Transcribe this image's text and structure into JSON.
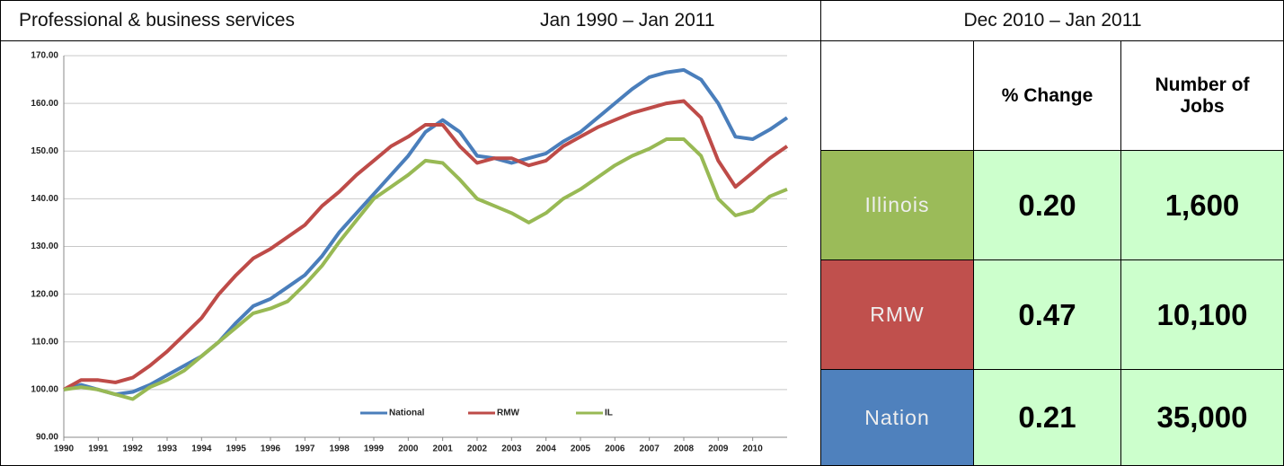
{
  "header": {
    "title": "Professional & business services",
    "chart_range": "Jan 1990 – Jan 2011",
    "table_range": "Dec 2010 – Jan 2011"
  },
  "chart_data": {
    "type": "line",
    "x": [
      1990,
      1990.5,
      1991,
      1991.5,
      1992,
      1992.5,
      1993,
      1993.5,
      1994,
      1994.5,
      1995,
      1995.5,
      1996,
      1996.5,
      1997,
      1997.5,
      1998,
      1998.5,
      1999,
      1999.5,
      2000,
      2000.5,
      2001,
      2001.5,
      2002,
      2002.5,
      2003,
      2003.5,
      2004,
      2004.5,
      2005,
      2005.5,
      2006,
      2006.5,
      2007,
      2007.5,
      2008,
      2008.5,
      2009,
      2009.5,
      2010,
      2010.5,
      2011
    ],
    "series": [
      {
        "name": "National",
        "color": "#4a7ebb",
        "values": [
          100,
          101,
          100,
          99,
          99.5,
          101,
          103,
          105,
          107,
          110,
          114,
          117.5,
          119,
          121.5,
          124,
          128,
          133,
          137,
          141,
          145,
          149,
          154,
          156.5,
          154,
          149,
          148.5,
          147.5,
          148.5,
          149.5,
          152,
          154,
          157,
          160,
          163,
          165.5,
          166.5,
          167,
          165,
          160,
          153,
          152.5,
          154.5,
          157
        ]
      },
      {
        "name": "RMW",
        "color": "#be4b48",
        "values": [
          100,
          102,
          102,
          101.5,
          102.5,
          105,
          108,
          111.5,
          115,
          120,
          124,
          127.5,
          129.5,
          132,
          134.5,
          138.5,
          141.5,
          145,
          148,
          151,
          153,
          155.5,
          155.5,
          151,
          147.5,
          148.5,
          148.5,
          147,
          148,
          151,
          153,
          155,
          156.5,
          158,
          159,
          160,
          160.5,
          157,
          148,
          142.5,
          145.5,
          148.5,
          151
        ]
      },
      {
        "name": "IL",
        "color": "#98b954",
        "values": [
          100,
          100.5,
          100,
          99,
          98,
          100.5,
          102,
          104,
          107,
          110,
          113,
          116,
          117,
          118.5,
          122,
          126,
          131,
          135.5,
          140,
          142.5,
          145,
          148,
          147.5,
          144,
          140,
          138.5,
          137,
          135,
          137,
          140,
          142,
          144.5,
          147,
          149,
          150.5,
          152.5,
          152.5,
          149,
          140,
          136.5,
          137.5,
          140.5,
          142
        ]
      }
    ],
    "xlim": [
      1990,
      2011
    ],
    "xticks": [
      1990,
      1991,
      1992,
      1993,
      1994,
      1995,
      1996,
      1997,
      1998,
      1999,
      2000,
      2001,
      2002,
      2003,
      2004,
      2005,
      2006,
      2007,
      2008,
      2009,
      2010
    ],
    "ylim": [
      90,
      170
    ],
    "yticks": [
      {
        "value": 90,
        "label": "90.00"
      },
      {
        "value": 100,
        "label": "100.00"
      },
      {
        "value": 110,
        "label": "110.00"
      },
      {
        "value": 120,
        "label": "120.00"
      },
      {
        "value": 130,
        "label": "130.00"
      },
      {
        "value": 140,
        "label": "140.00"
      },
      {
        "value": 150,
        "label": "150.00"
      },
      {
        "value": 160,
        "label": "160.00"
      },
      {
        "value": 170,
        "label": "170.00"
      }
    ],
    "grid": true,
    "legend": "bottom"
  },
  "table": {
    "columns": [
      "% Change",
      "Number of Jobs"
    ],
    "rows": [
      [
        "Illinois",
        "0.20",
        "1,600"
      ],
      [
        "RMW",
        "0.47",
        "10,100"
      ],
      [
        "Nation",
        "0.21",
        "35,000"
      ]
    ],
    "row_colors": [
      "#9bbb59",
      "#c0504d",
      "#4f81bd"
    ],
    "cell_color": "#ccffcc"
  }
}
